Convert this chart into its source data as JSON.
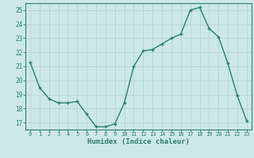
{
  "x_values": [
    0,
    1,
    2,
    3,
    4,
    5,
    6,
    7,
    8,
    9,
    10,
    11,
    12,
    13,
    14,
    15,
    16,
    17,
    18,
    19,
    20,
    21,
    22,
    23
  ],
  "y_values": [
    21.3,
    19.5,
    18.7,
    18.4,
    18.4,
    18.5,
    17.6,
    16.7,
    16.7,
    16.9,
    18.4,
    21.0,
    22.1,
    22.2,
    22.6,
    23.0,
    23.3,
    25.0,
    25.2,
    23.7,
    23.1,
    21.2,
    18.9,
    17.1
  ],
  "xlabel": "Humidex (Indice chaleur)",
  "ylim": [
    16.5,
    25.5
  ],
  "xlim": [
    -0.5,
    23.5
  ],
  "yticks": [
    17,
    18,
    19,
    20,
    21,
    22,
    23,
    24,
    25
  ],
  "xticks": [
    0,
    1,
    2,
    3,
    4,
    5,
    6,
    7,
    8,
    9,
    10,
    11,
    12,
    13,
    14,
    15,
    16,
    17,
    18,
    19,
    20,
    21,
    22,
    23
  ],
  "line_color": "#2d7d6e",
  "marker_color": "#2d7d6e",
  "bg_color": "#cce8e8",
  "grid_color": "#b8d8d4",
  "axis_color": "#2d7d6e",
  "tick_label_color": "#2d7d6e",
  "xlabel_color": "#2d7d6e",
  "marker_size": 2.5,
  "line_width": 1.0
}
